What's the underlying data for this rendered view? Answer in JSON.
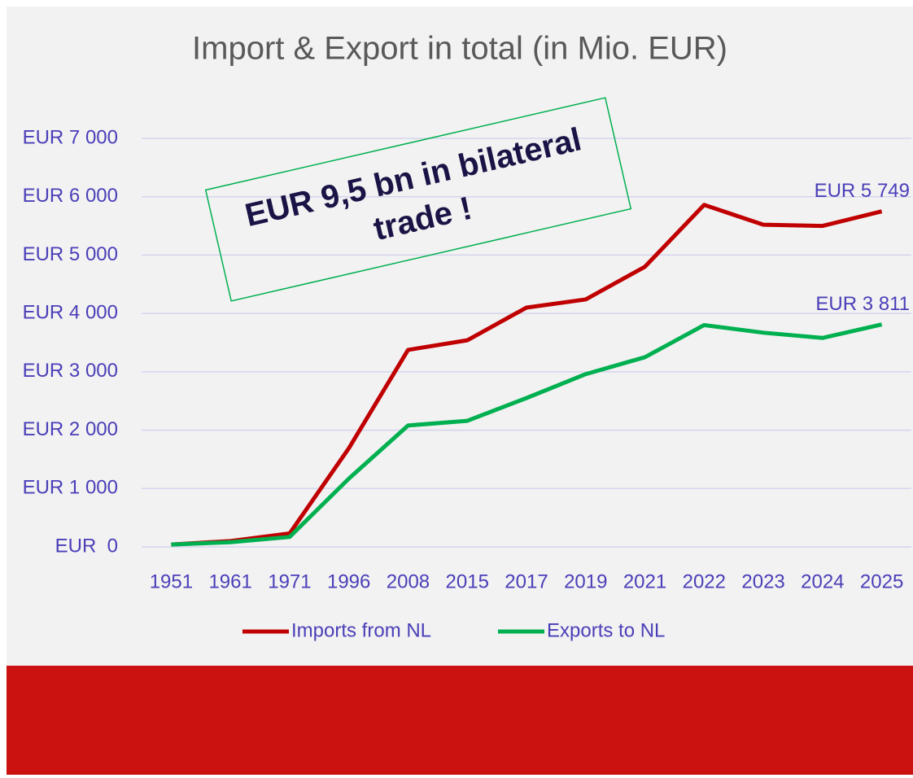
{
  "chart_data": {
    "type": "line",
    "title": "Import & Export in total (in Mio. EUR)",
    "annotation": [
      "EUR 9,5 bn in bilateral",
      "trade !"
    ],
    "categories": [
      "1951",
      "1961",
      "1971",
      "1996",
      "2008",
      "2015",
      "2017",
      "2019",
      "2021",
      "2022",
      "2023",
      "2024",
      "2025"
    ],
    "series": [
      {
        "name": "Imports from NL",
        "color": "#c00000",
        "values": [
          40,
          100,
          230,
          1690,
          3375,
          3540,
          4100,
          4240,
          4800,
          5860,
          5520,
          5500,
          5749
        ],
        "value_labels": [
          null,
          null,
          null,
          null,
          null,
          null,
          null,
          null,
          null,
          null,
          null,
          null,
          "EUR 5 749"
        ]
      },
      {
        "name": "Exports to NL",
        "color": "#00b050",
        "values": [
          40,
          80,
          170,
          1170,
          2080,
          2160,
          2550,
          2960,
          3250,
          3800,
          3670,
          3580,
          3811
        ],
        "value_labels": [
          null,
          null,
          null,
          null,
          null,
          null,
          null,
          null,
          null,
          null,
          null,
          null,
          "EUR 3 811"
        ]
      }
    ],
    "ylim": [
      0,
      7000
    ],
    "yticks": [
      {
        "value": 0,
        "label": "EUR  0"
      },
      {
        "value": 1000,
        "label": "EUR 1 000"
      },
      {
        "value": 2000,
        "label": "EUR 2 000"
      },
      {
        "value": 3000,
        "label": "EUR 3 000"
      },
      {
        "value": 4000,
        "label": "EUR 4 000"
      },
      {
        "value": 5000,
        "label": "EUR 5 000"
      },
      {
        "value": 6000,
        "label": "EUR 6 000"
      },
      {
        "value": 7000,
        "label": "EUR 7 000"
      }
    ],
    "grid": true,
    "legend": "bottom"
  }
}
